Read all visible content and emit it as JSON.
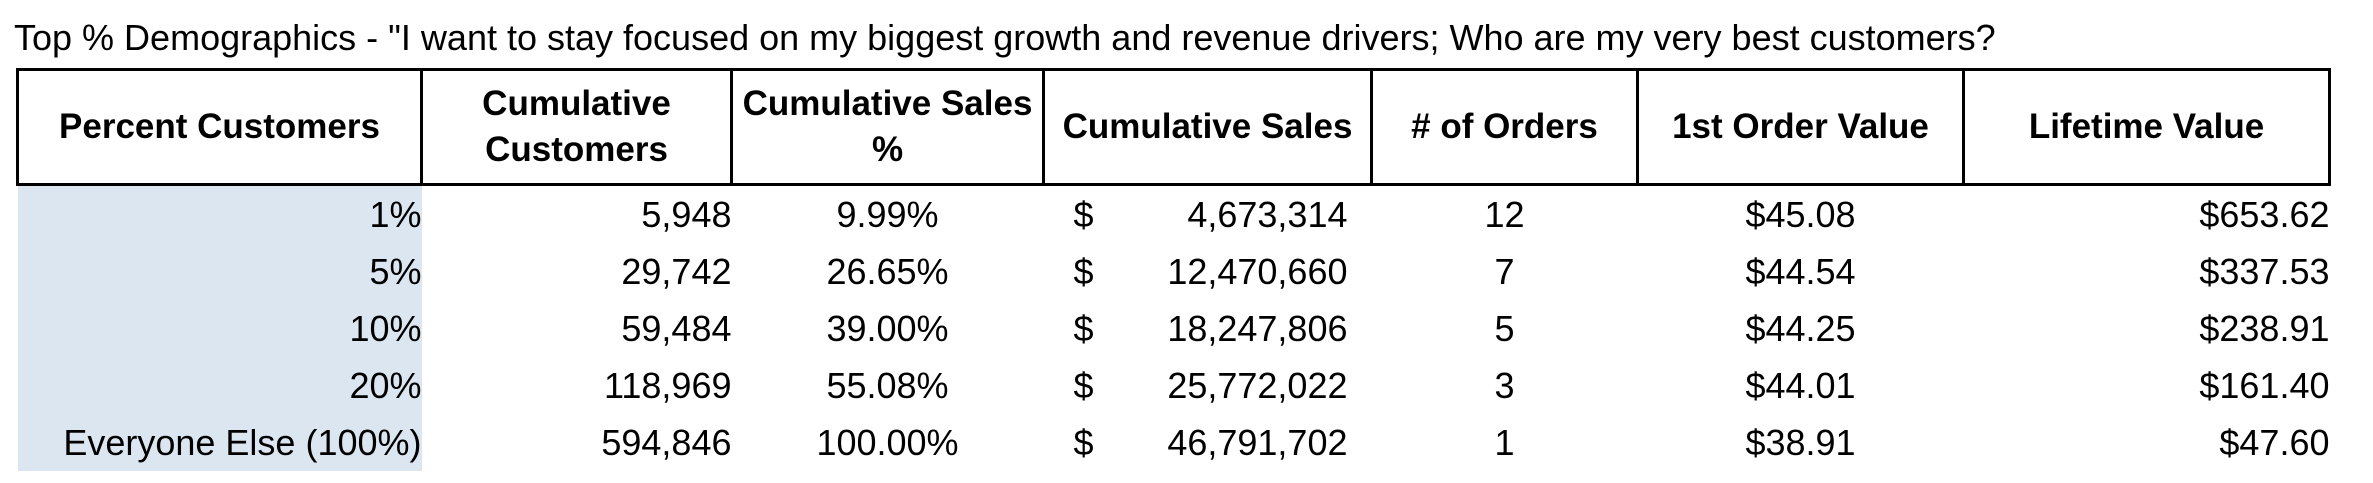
{
  "title": "Top % Demographics - \"I want to stay focused on my biggest growth and revenue drivers; Who are my very best customers?",
  "table": {
    "headers": [
      "Percent Customers",
      "Cumulative Customers",
      "Cumulative Sales %",
      "Cumulative Sales",
      "# of Orders",
      "1st Order Value",
      "Lifetime Value"
    ],
    "currency_symbol": "$",
    "rows": [
      {
        "percent": "1%",
        "customers": "5,948",
        "sales_pct": "9.99%",
        "sales": "4,673,314",
        "orders": "12",
        "first_order": "$45.08",
        "lifetime": "$653.62"
      },
      {
        "percent": "5%",
        "customers": "29,742",
        "sales_pct": "26.65%",
        "sales": "12,470,660",
        "orders": "7",
        "first_order": "$44.54",
        "lifetime": "$337.53"
      },
      {
        "percent": "10%",
        "customers": "59,484",
        "sales_pct": "39.00%",
        "sales": "18,247,806",
        "orders": "5",
        "first_order": "$44.25",
        "lifetime": "$238.91"
      },
      {
        "percent": "20%",
        "customers": "118,969",
        "sales_pct": "55.08%",
        "sales": "25,772,022",
        "orders": "3",
        "first_order": "$44.01",
        "lifetime": "$161.40"
      },
      {
        "percent": "Everyone Else (100%)",
        "customers": "594,846",
        "sales_pct": "100.00%",
        "sales": "46,791,702",
        "orders": "1",
        "first_order": "$38.91",
        "lifetime": "$47.60"
      }
    ]
  },
  "colors": {
    "first_column_fill": "#dce6f1",
    "border": "#000000"
  }
}
